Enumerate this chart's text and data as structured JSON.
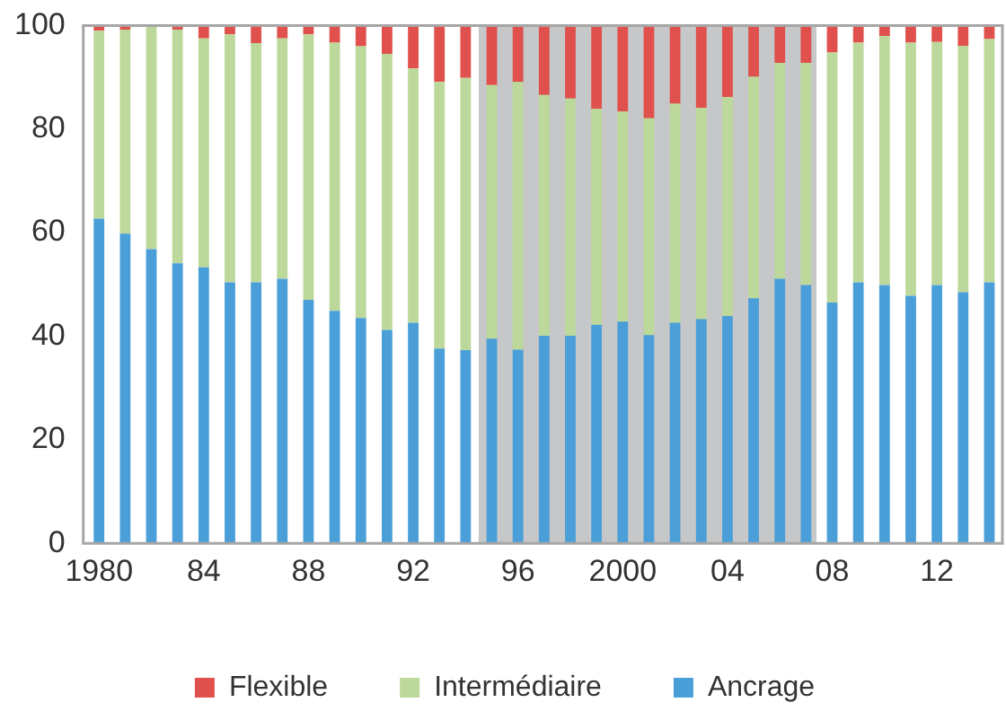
{
  "chart_data": {
    "type": "bar",
    "stacked": true,
    "x": [
      1980,
      1981,
      1982,
      1983,
      1984,
      1985,
      1986,
      1987,
      1988,
      1989,
      1990,
      1991,
      1992,
      1993,
      1994,
      1995,
      1996,
      1997,
      1998,
      1999,
      2000,
      2001,
      2002,
      2003,
      2004,
      2005,
      2006,
      2007,
      2008,
      2009,
      2010,
      2011,
      2012,
      2013,
      2014
    ],
    "series": [
      {
        "name": "Ancrage",
        "color": "#4a9fd8",
        "values": [
          62.7,
          59.8,
          56.8,
          54.1,
          53.3,
          50.4,
          50.4,
          51.1,
          47.0,
          44.9,
          43.5,
          41.2,
          42.6,
          37.6,
          37.3,
          39.5,
          37.4,
          40.1,
          40.1,
          42.2,
          42.8,
          40.2,
          42.6,
          43.3,
          43.9,
          47.3,
          51.1,
          49.9,
          46.5,
          50.4,
          49.9,
          47.8,
          49.9,
          48.5,
          50.4
        ]
      },
      {
        "name": "Intermédiaire",
        "color": "#bcd89a",
        "values": [
          36.3,
          39.4,
          43.2,
          45.1,
          44.2,
          47.9,
          46.2,
          46.4,
          51.3,
          51.8,
          52.5,
          53.3,
          49.1,
          51.5,
          52.6,
          49.0,
          51.7,
          46.5,
          45.8,
          41.7,
          40.6,
          41.9,
          42.3,
          40.8,
          42.3,
          42.8,
          41.7,
          42.9,
          48.3,
          46.3,
          48.1,
          48.9,
          46.9,
          47.6,
          47.0
        ]
      },
      {
        "name": "Flexible",
        "color": "#e0504c",
        "values": [
          1.0,
          0.8,
          0,
          0.8,
          2.5,
          1.7,
          3.4,
          2.5,
          1.7,
          3.3,
          4.0,
          5.5,
          8.3,
          10.9,
          10.1,
          11.5,
          10.9,
          13.4,
          14.1,
          16.1,
          16.6,
          17.9,
          15.1,
          15.9,
          13.8,
          9.9,
          7.2,
          7.2,
          5.2,
          3.3,
          2.0,
          3.3,
          3.2,
          3.9,
          2.6
        ]
      }
    ],
    "xlim": [
      1979.4,
      2014.5
    ],
    "xticks": [
      1980,
      {
        "value": 1984,
        "label": "84"
      },
      {
        "value": 1988,
        "label": "88"
      },
      {
        "value": 1992,
        "label": "92"
      },
      {
        "value": 1996,
        "label": "96"
      },
      2000,
      {
        "value": 2004,
        "label": "04"
      },
      {
        "value": 2008,
        "label": "08"
      },
      {
        "value": 2012,
        "label": "12"
      }
    ],
    "ylim": [
      0,
      100
    ],
    "yticks": [
      0,
      20,
      40,
      60,
      80,
      100
    ],
    "bands": [
      {
        "axis": "x",
        "from": 1994.5,
        "to": 2007.4,
        "color": "#c6c7c9"
      }
    ],
    "grid": false,
    "legend": "bottom"
  }
}
